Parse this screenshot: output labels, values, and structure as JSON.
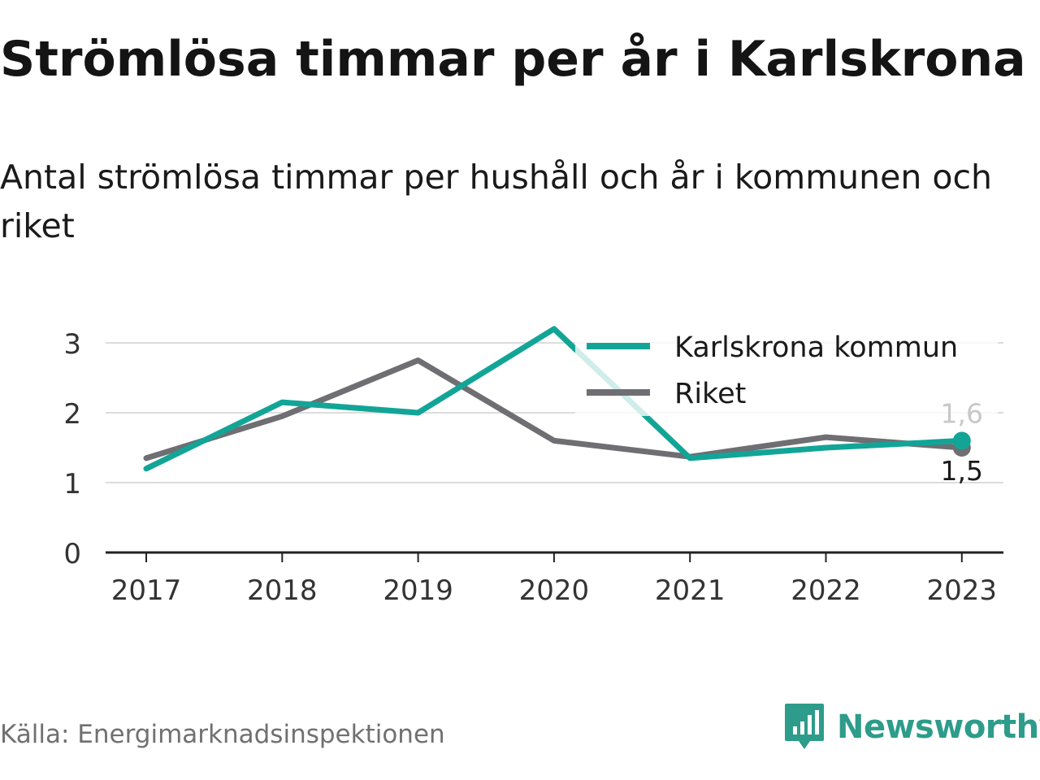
{
  "title": "Strömlösa timmar per år i Karlskrona",
  "subtitle": "Antal strömlösa timmar per hushåll och år i kommunen och riket",
  "source": "Källa: Energimarknadsinspektionen",
  "brand": {
    "name": "Newsworthy",
    "logo_icon": "bar-chart-speech-bubble-icon",
    "color": "#2d9c8a"
  },
  "chart_data": {
    "type": "line",
    "title": "Strömlösa timmar per år i Karlskrona",
    "subtitle": "Antal strömlösa timmar per hushåll och år i kommunen och riket",
    "x": [
      "2017",
      "2018",
      "2019",
      "2020",
      "2021",
      "2022",
      "2023"
    ],
    "ylim": [
      0,
      3.2
    ],
    "yticks": [
      0,
      1,
      2,
      3
    ],
    "grid": true,
    "legend_position": "top-right",
    "series": [
      {
        "name": "Karlskrona kommun",
        "color": "#12a597",
        "values": [
          1.2,
          2.15,
          2.0,
          3.2,
          1.35,
          1.5,
          1.6
        ],
        "end_label": "1,6"
      },
      {
        "name": "Riket",
        "color": "#6e6e73",
        "values": [
          1.35,
          1.95,
          2.75,
          1.6,
          1.37,
          1.65,
          1.5
        ],
        "end_label": "1,5"
      }
    ]
  }
}
